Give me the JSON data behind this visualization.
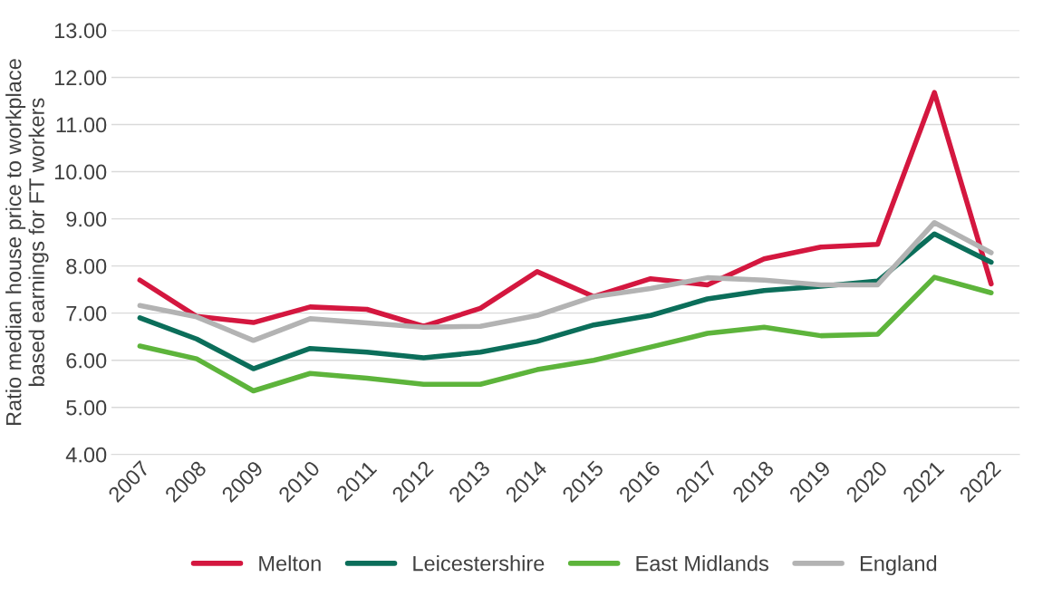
{
  "chart_data": {
    "type": "line",
    "ylabel": "Ratio median house price to workplace\nbased earnings for FT workers",
    "categories": [
      "2007",
      "2008",
      "2009",
      "2010",
      "2011",
      "2012",
      "2013",
      "2014",
      "2015",
      "2016",
      "2017",
      "2018",
      "2019",
      "2020",
      "2021",
      "2022"
    ],
    "series": [
      {
        "name": "Melton",
        "color": "#d4173f",
        "values": [
          7.7,
          6.93,
          6.8,
          7.13,
          7.08,
          6.72,
          7.1,
          7.88,
          7.35,
          7.73,
          7.6,
          8.15,
          8.4,
          8.46,
          11.68,
          7.62
        ]
      },
      {
        "name": "Leicestershire",
        "color": "#0b6e5a",
        "values": [
          6.9,
          6.45,
          5.82,
          6.25,
          6.17,
          6.05,
          6.17,
          6.4,
          6.75,
          6.95,
          7.3,
          7.48,
          7.57,
          7.68,
          8.68,
          8.08
        ]
      },
      {
        "name": "East Midlands",
        "color": "#5db43b",
        "values": [
          6.3,
          6.03,
          5.35,
          5.72,
          5.62,
          5.49,
          5.49,
          5.8,
          6.0,
          6.28,
          6.57,
          6.7,
          6.52,
          6.55,
          7.76,
          7.43
        ]
      },
      {
        "name": "England",
        "color": "#b3b3b3",
        "values": [
          7.16,
          6.92,
          6.42,
          6.88,
          6.79,
          6.7,
          6.72,
          6.95,
          7.35,
          7.52,
          7.75,
          7.7,
          7.6,
          7.6,
          8.92,
          8.28
        ]
      }
    ],
    "ylim": [
      4,
      13
    ],
    "yticks": [
      {
        "value": 4,
        "label": "4.00"
      },
      {
        "value": 5,
        "label": "5.00"
      },
      {
        "value": 6,
        "label": "6.00"
      },
      {
        "value": 7,
        "label": "7.00"
      },
      {
        "value": 8,
        "label": "8.00"
      },
      {
        "value": 9,
        "label": "9.00"
      },
      {
        "value": 10,
        "label": "10.00"
      },
      {
        "value": 11,
        "label": "11.00"
      },
      {
        "value": 12,
        "label": "12.00"
      },
      {
        "value": 13,
        "label": "13.00"
      }
    ],
    "grid": "y",
    "legend": "bottom",
    "marker": "none",
    "line_style": "solid"
  }
}
